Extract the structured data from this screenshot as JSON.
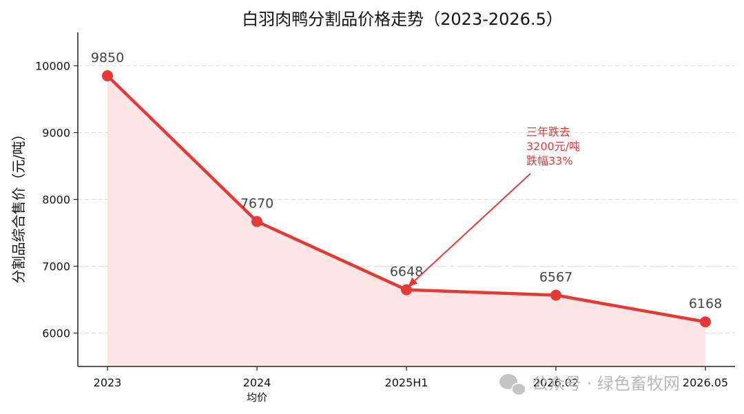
{
  "chart_data": {
    "type": "line",
    "title": "白羽肉鸭分割品价格走势（2023-2026.5）",
    "ylabel": "分割品综合售价（元/吨）",
    "xlabel": "",
    "categories": [
      "2023",
      "2024",
      "2025H1",
      "2026.02",
      "2026.05"
    ],
    "category_sublabels": [
      "",
      "均价",
      "",
      "",
      ""
    ],
    "values": [
      9850,
      7670,
      6648,
      6567,
      6168
    ],
    "data_labels": [
      "9850",
      "7670",
      "6648",
      "6567",
      "6168"
    ],
    "ylim": [
      5500,
      10500
    ],
    "yticks": [
      6000,
      7000,
      8000,
      9000,
      10000
    ],
    "ytick_labels": [
      "6000",
      "7000",
      "8000",
      "9000",
      "10000"
    ],
    "grid": "horizontal dashed",
    "area_fill": true,
    "annotation": {
      "lines": [
        "三年跌去",
        "3200元/吨",
        "跌幅33%"
      ],
      "points_to_category": "2025H1",
      "points_to_value": 6648
    },
    "colors": {
      "line": "#e53935",
      "fill": "#fbe5e5",
      "annotation": "#e53935",
      "grid": "#dddddd"
    }
  },
  "watermark": {
    "icon": "wechat-icon",
    "text": "公众号 · 绿色畜牧网"
  }
}
